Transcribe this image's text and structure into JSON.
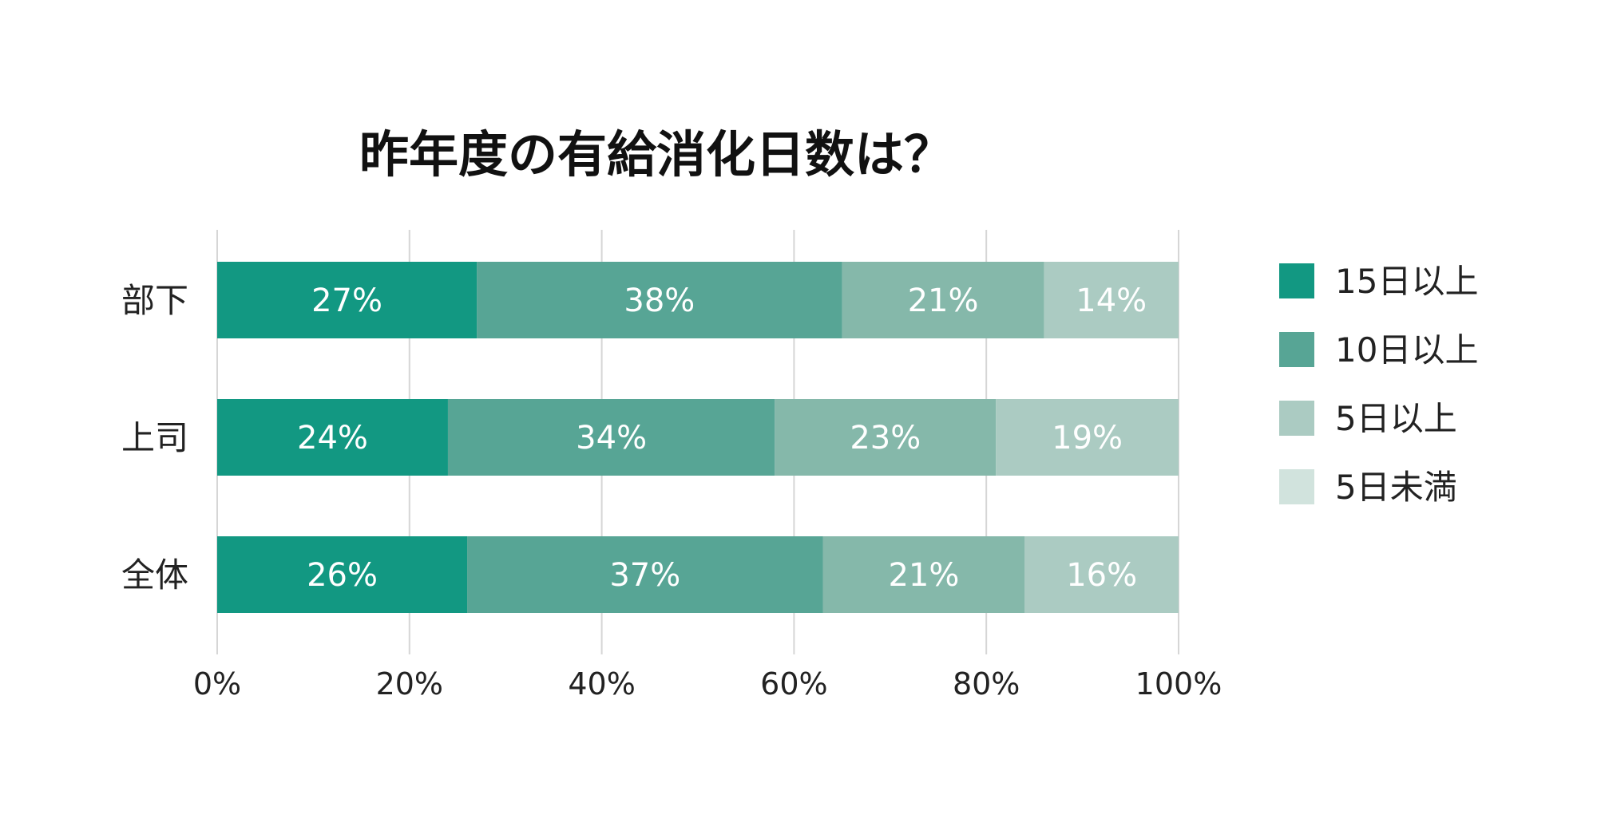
{
  "chart_data": {
    "type": "bar",
    "orientation": "horizontal",
    "stacked": true,
    "title": "昨年度の有給消化日数は？",
    "categories": [
      "部下",
      "上司",
      "全体"
    ],
    "series": [
      {
        "name": "15日以上",
        "color": "#129882",
        "values": [
          27,
          24,
          26
        ],
        "labels": [
          "27%",
          "24%",
          "26%"
        ]
      },
      {
        "name": "10日以上",
        "color": "#57a595",
        "values": [
          38,
          34,
          37
        ],
        "labels": [
          "38%",
          "34%",
          "37%"
        ]
      },
      {
        "name": "5日以上",
        "color": "#85b8aa",
        "values": [
          21,
          23,
          21
        ],
        "labels": [
          "21%",
          "23%",
          "21%"
        ]
      },
      {
        "name": "5日未満",
        "color": "#abcbc2",
        "values": [
          14,
          19,
          16
        ],
        "labels": [
          "14%",
          "19%",
          "16%"
        ]
      }
    ],
    "legend_colors": [
      "#129882",
      "#57a595",
      "#abcbc2",
      "#d1e3dd"
    ],
    "xlim": [
      0,
      100
    ],
    "xticks": [
      "0%",
      "20%",
      "40%",
      "60%",
      "80%",
      "100%"
    ],
    "grid": true,
    "legend_position": "right"
  }
}
